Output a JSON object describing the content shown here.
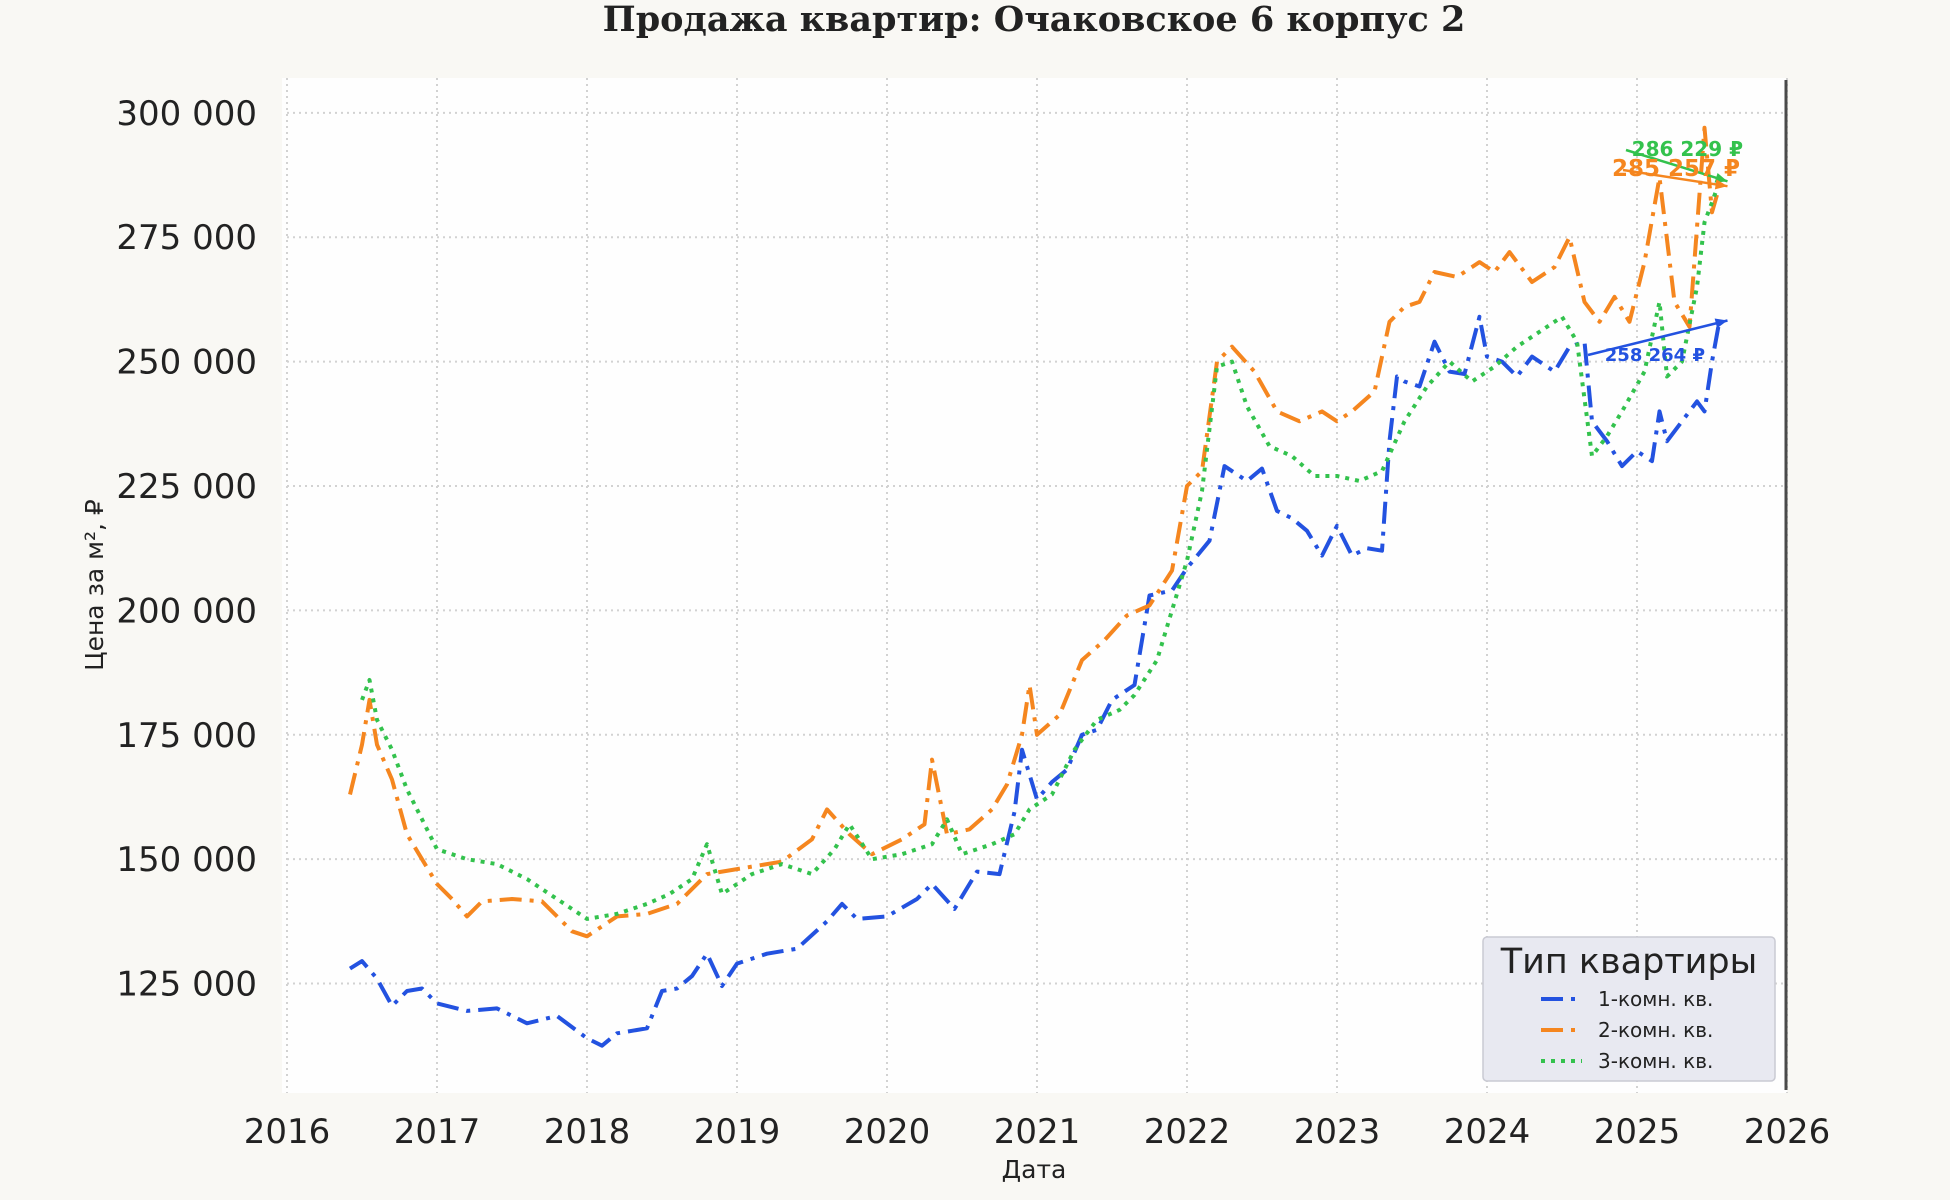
{
  "chart_data": {
    "type": "line",
    "title": "Продажа квартир: Очаковское 6 корпус 2",
    "xlabel": "Дата",
    "ylabel": "Цена за м², ₽",
    "xlim": [
      2016,
      2026
    ],
    "ylim": [
      103000,
      307000
    ],
    "x_ticks": [
      2016,
      2017,
      2018,
      2019,
      2020,
      2021,
      2022,
      2023,
      2024,
      2025,
      2026
    ],
    "x_tick_labels": [
      "2016",
      "2017",
      "2018",
      "2019",
      "2020",
      "2021",
      "2022",
      "2023",
      "2024",
      "2025",
      "2026"
    ],
    "y_ticks": [
      125000,
      150000,
      175000,
      200000,
      225000,
      250000,
      275000,
      300000
    ],
    "y_tick_labels": [
      "125 000",
      "150 000",
      "175 000",
      "200 000",
      "225 000",
      "250 000",
      "275 000",
      "300 000"
    ],
    "grid": true,
    "legend": {
      "title": "Тип квартиры",
      "placement": "bottom-right",
      "entries": [
        "1-комн. кв.",
        "2-комн. кв.",
        "3-комн. кв."
      ]
    },
    "series": [
      {
        "name": "1-комн. кв.",
        "color": "#2352e0",
        "dash": "dashdot",
        "x": [
          2016.42,
          2016.5,
          2016.6,
          2016.7,
          2016.8,
          2016.9,
          2017.0,
          2017.2,
          2017.4,
          2017.6,
          2017.8,
          2018.0,
          2018.1,
          2018.2,
          2018.3,
          2018.4,
          2018.5,
          2018.6,
          2018.7,
          2018.8,
          2018.9,
          2019.0,
          2019.2,
          2019.4,
          2019.6,
          2019.7,
          2019.8,
          2020.0,
          2020.2,
          2020.3,
          2020.45,
          2020.6,
          2020.75,
          2020.85,
          2020.9,
          2021.0,
          2021.1,
          2021.2,
          2021.3,
          2021.4,
          2021.5,
          2021.65,
          2021.75,
          2021.9,
          2022.0,
          2022.15,
          2022.25,
          2022.4,
          2022.5,
          2022.6,
          2022.7,
          2022.8,
          2022.9,
          2023.0,
          2023.1,
          2023.2,
          2023.3,
          2023.35,
          2023.4,
          2023.45,
          2023.55,
          2023.65,
          2023.75,
          2023.85,
          2023.95,
          2024.0,
          2024.1,
          2024.2,
          2024.3,
          2024.45,
          2024.55,
          2024.65,
          2024.7,
          2024.8,
          2024.9,
          2025.0,
          2025.1,
          2025.15,
          2025.2,
          2025.3,
          2025.4,
          2025.45,
          2025.5,
          2025.55
        ],
        "values": [
          128000,
          129500,
          126000,
          120500,
          123500,
          124000,
          121000,
          119500,
          120000,
          117000,
          118500,
          114000,
          112500,
          115000,
          115500,
          116000,
          123500,
          124000,
          126500,
          131000,
          124500,
          129000,
          131000,
          132000,
          137500,
          141000,
          138000,
          138500,
          142000,
          145000,
          140000,
          147500,
          147000,
          159500,
          172000,
          162000,
          165500,
          168000,
          175000,
          176000,
          182000,
          185000,
          203000,
          204000,
          208500,
          214000,
          229000,
          226000,
          228500,
          220000,
          218500,
          216000,
          211000,
          217000,
          211000,
          212500,
          212000,
          234000,
          247000,
          246000,
          245000,
          254000,
          248000,
          247500,
          259000,
          251000,
          250000,
          247000,
          251000,
          248000,
          253000,
          254000,
          238000,
          234000,
          229000,
          232000,
          230000,
          240000,
          234000,
          238000,
          242000,
          240000,
          250000,
          258264
        ]
      },
      {
        "name": "2-комн. кв.",
        "color": "#f5861f",
        "dash": "dashdot",
        "x": [
          2016.42,
          2016.5,
          2016.55,
          2016.6,
          2016.7,
          2016.8,
          2016.9,
          2017.0,
          2017.1,
          2017.2,
          2017.3,
          2017.5,
          2017.7,
          2017.9,
          2018.0,
          2018.2,
          2018.4,
          2018.6,
          2018.8,
          2019.0,
          2019.3,
          2019.5,
          2019.6,
          2019.75,
          2019.9,
          2020.1,
          2020.25,
          2020.3,
          2020.4,
          2020.55,
          2020.7,
          2020.8,
          2020.9,
          2020.95,
          2021.0,
          2021.15,
          2021.3,
          2021.45,
          2021.6,
          2021.75,
          2021.9,
          2022.0,
          2022.1,
          2022.2,
          2022.3,
          2022.45,
          2022.6,
          2022.75,
          2022.9,
          2023.0,
          2023.1,
          2023.25,
          2023.35,
          2023.45,
          2023.55,
          2023.65,
          2023.8,
          2023.95,
          2024.05,
          2024.15,
          2024.3,
          2024.45,
          2024.55,
          2024.65,
          2024.75,
          2024.85,
          2024.95,
          2025.05,
          2025.15,
          2025.25,
          2025.35,
          2025.45,
          2025.5,
          2025.55
        ],
        "values": [
          163000,
          173000,
          182000,
          173000,
          166000,
          155000,
          150000,
          145000,
          142000,
          138500,
          141500,
          142000,
          141500,
          135500,
          134500,
          138500,
          139000,
          141000,
          147000,
          148000,
          149500,
          154000,
          160000,
          155000,
          151000,
          154000,
          157000,
          170000,
          155000,
          156000,
          160000,
          165000,
          175000,
          185000,
          175000,
          179000,
          190000,
          194000,
          199000,
          201000,
          208000,
          225000,
          228000,
          250000,
          253000,
          248000,
          240000,
          238000,
          240000,
          238000,
          240000,
          244000,
          258000,
          261000,
          262000,
          268000,
          267000,
          270000,
          268000,
          272000,
          266000,
          269000,
          275000,
          262000,
          258000,
          263000,
          258000,
          270000,
          287000,
          262000,
          257000,
          297000,
          280000,
          285257
        ]
      },
      {
        "name": "3-комн. кв.",
        "color": "#33c24d",
        "dash": "dotted",
        "x": [
          2016.5,
          2016.55,
          2016.6,
          2016.7,
          2016.8,
          2016.9,
          2017.0,
          2017.2,
          2017.4,
          2017.6,
          2017.8,
          2018.0,
          2018.2,
          2018.4,
          2018.55,
          2018.7,
          2018.8,
          2018.9,
          2019.1,
          2019.3,
          2019.5,
          2019.65,
          2019.75,
          2019.9,
          2020.1,
          2020.3,
          2020.4,
          2020.5,
          2020.7,
          2020.85,
          2020.95,
          2021.1,
          2021.25,
          2021.4,
          2021.55,
          2021.65,
          2021.8,
          2022.0,
          2022.1,
          2022.2,
          2022.3,
          2022.4,
          2022.55,
          2022.7,
          2022.85,
          2023.0,
          2023.15,
          2023.3,
          2023.45,
          2023.6,
          2023.75,
          2023.9,
          2024.05,
          2024.2,
          2024.35,
          2024.5,
          2024.6,
          2024.7,
          2024.8,
          2024.9,
          2025.05,
          2025.15,
          2025.2,
          2025.3,
          2025.4,
          2025.45,
          2025.5,
          2025.55
        ],
        "values": [
          182000,
          186000,
          178000,
          172000,
          164000,
          158000,
          152000,
          150000,
          149000,
          146000,
          142000,
          138000,
          139000,
          141000,
          143000,
          146000,
          153000,
          143000,
          147000,
          149000,
          147000,
          152000,
          157000,
          150000,
          151000,
          153000,
          158000,
          151000,
          153000,
          155000,
          160000,
          163000,
          172000,
          178000,
          180000,
          183000,
          190000,
          210000,
          224000,
          249000,
          250000,
          241000,
          233000,
          231000,
          227000,
          227000,
          226000,
          228000,
          238000,
          245000,
          250000,
          246000,
          249000,
          253000,
          256000,
          259000,
          254000,
          231000,
          235000,
          240000,
          248000,
          262000,
          247000,
          250000,
          265000,
          278000,
          282000,
          286229
        ]
      }
    ],
    "annotations": [
      {
        "text": "286 229 ₽",
        "series": "3-комн. кв.",
        "value": 286229
      },
      {
        "text": "285 257 ₽",
        "series": "2-комн. кв.",
        "value": 285257
      },
      {
        "text": "258 264 ₽",
        "series": "1-комн. кв.",
        "value": 258264
      }
    ]
  }
}
